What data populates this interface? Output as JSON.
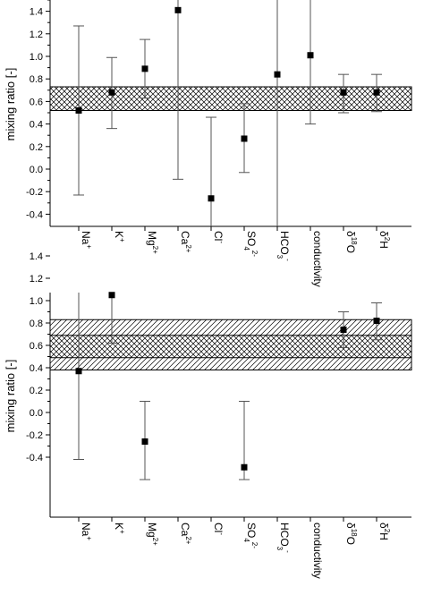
{
  "chart_data": [
    {
      "type": "scatter",
      "ylabel": "mixing ratio [-]",
      "ylim": [
        -0.5,
        1.5
      ],
      "yticks": [
        -0.4,
        -0.2,
        0.0,
        0.2,
        0.4,
        0.6,
        0.8,
        1.0,
        1.2,
        1.4
      ],
      "ytick_labels": [
        "-0.4",
        "-0.2",
        "0.0",
        "0.2",
        "0.4",
        "0.6",
        "0.8",
        "1.0",
        "1.2",
        "1.4"
      ],
      "categories": [
        {
          "base": "Na",
          "sup": "+",
          "sub": ""
        },
        {
          "base": "K",
          "sup": "+",
          "sub": ""
        },
        {
          "base": "Mg",
          "sup": "2+",
          "sub": ""
        },
        {
          "base": "Ca",
          "sup": "2+",
          "sub": ""
        },
        {
          "base": "Cl",
          "sup": "-",
          "sub": ""
        },
        {
          "base": "SO",
          "sup": "2-",
          "sub": "4"
        },
        {
          "base": "HCO",
          "sup": "-",
          "sub": "3"
        },
        {
          "base": "conductivity",
          "sup": "",
          "sub": ""
        },
        {
          "pre": "18",
          "base": "O",
          "sup": "",
          "sub": "",
          "delta": true
        },
        {
          "pre": "2",
          "base": "H",
          "sup": "",
          "sub": "",
          "delta": true
        }
      ],
      "delta_symbol": "δ",
      "points": [
        {
          "value": 0.52,
          "low": -0.23,
          "high": 1.27
        },
        {
          "value": 0.68,
          "low": 0.36,
          "high": 0.99
        },
        {
          "value": 0.89,
          "low": 0.63,
          "high": 1.15
        },
        {
          "value": 1.41,
          "low": -0.09,
          "high": 1.6
        },
        {
          "value": -0.26,
          "low": -0.6,
          "high": 0.46
        },
        {
          "value": 0.27,
          "low": -0.03,
          "high": 0.58
        },
        {
          "value": 0.84,
          "low": -0.6,
          "high": 1.6
        },
        {
          "value": 1.01,
          "low": 0.4,
          "high": 1.6
        },
        {
          "value": 0.68,
          "low": 0.5,
          "high": 0.84
        },
        {
          "value": 0.68,
          "low": 0.51,
          "high": 0.84
        }
      ],
      "bands": [
        {
          "low": 0.52,
          "high": 0.73,
          "pattern": "crosshatch"
        }
      ],
      "colors": {
        "marker": "#000000",
        "errorbar": "#555555"
      }
    },
    {
      "type": "scatter",
      "ylabel": "mixing ratio [-]",
      "ylim": [
        -0.5,
        1.5
      ],
      "yticks": [
        -0.4,
        -0.2,
        0.0,
        0.2,
        0.4,
        0.6,
        0.8,
        1.0,
        1.2,
        1.4
      ],
      "ytick_labels": [
        "-0.4",
        "-0.2",
        "0.0",
        "0.2",
        "0.4",
        "0.6",
        "0.8",
        "1.0",
        "1.2",
        "1.4"
      ],
      "categories": [
        {
          "base": "Na",
          "sup": "+",
          "sub": ""
        },
        {
          "base": "K",
          "sup": "+",
          "sub": ""
        },
        {
          "base": "Mg",
          "sup": "2+",
          "sub": ""
        },
        {
          "base": "Ca",
          "sup": "2+",
          "sub": ""
        },
        {
          "base": "Cl",
          "sup": "-",
          "sub": ""
        },
        {
          "base": "SO",
          "sup": "2-",
          "sub": "4"
        },
        {
          "base": "HCO",
          "sup": "-",
          "sub": "3"
        },
        {
          "base": "conductivity",
          "sup": "",
          "sub": ""
        },
        {
          "pre": "18",
          "base": "O",
          "sup": "",
          "sub": "",
          "delta": true
        },
        {
          "pre": "2",
          "base": "H",
          "sup": "",
          "sub": "",
          "delta": true
        }
      ],
      "delta_symbol": "δ",
      "points": [
        {
          "value": 0.37,
          "low": -0.42,
          "high": 1.16
        },
        {
          "value": 1.05,
          "low": 0.62,
          "high": 1.48
        },
        {
          "value": -0.26,
          "low": -0.6,
          "high": 0.1
        },
        null,
        null,
        {
          "value": -0.49,
          "low": -0.6,
          "high": 0.1
        },
        null,
        null,
        {
          "value": 0.74,
          "low": 0.58,
          "high": 0.9
        },
        {
          "value": 0.82,
          "low": 0.65,
          "high": 0.98
        }
      ],
      "bands": [
        {
          "low": 0.38,
          "high": 0.83,
          "pattern": "diagonal"
        },
        {
          "low": 0.49,
          "high": 0.69,
          "pattern": "crosshatch"
        }
      ],
      "colors": {
        "marker": "#000000",
        "errorbar": "#555555"
      }
    }
  ]
}
